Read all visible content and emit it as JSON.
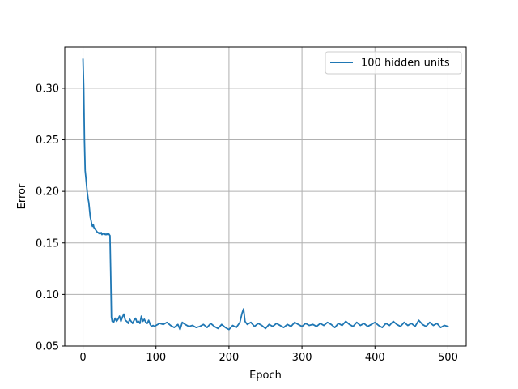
{
  "chart_data": {
    "type": "line",
    "xlabel": "Epoch",
    "ylabel": "Error",
    "xlim": [
      -25,
      525
    ],
    "ylim": [
      0.05,
      0.34
    ],
    "x_ticks": [
      0,
      100,
      200,
      300,
      400,
      500
    ],
    "y_ticks": [
      0.05,
      0.1,
      0.15,
      0.2,
      0.25,
      0.3
    ],
    "grid": true,
    "legend": "top-right",
    "colors": {
      "series": "#1f77b4",
      "grid": "#b0b0b0",
      "axis": "#000000"
    },
    "series": [
      {
        "name": "100 hidden units",
        "x": [
          0,
          1,
          2,
          3,
          4,
          5,
          6,
          7,
          8,
          9,
          10,
          11,
          12,
          13,
          14,
          15,
          16,
          17,
          18,
          19,
          20,
          21,
          22,
          23,
          24,
          25,
          26,
          27,
          28,
          29,
          30,
          31,
          32,
          33,
          34,
          35,
          36,
          37,
          38,
          39,
          40,
          42,
          44,
          46,
          48,
          50,
          52,
          54,
          56,
          58,
          60,
          62,
          64,
          66,
          68,
          70,
          72,
          74,
          76,
          78,
          80,
          82,
          84,
          86,
          88,
          90,
          92,
          94,
          96,
          98,
          100,
          105,
          110,
          115,
          120,
          125,
          130,
          133,
          136,
          140,
          145,
          150,
          155,
          160,
          165,
          170,
          175,
          180,
          185,
          190,
          195,
          200,
          205,
          210,
          215,
          218,
          220,
          222,
          225,
          230,
          235,
          240,
          245,
          250,
          255,
          260,
          265,
          270,
          275,
          280,
          285,
          290,
          295,
          300,
          305,
          310,
          315,
          320,
          325,
          330,
          335,
          340,
          345,
          350,
          355,
          360,
          365,
          370,
          375,
          380,
          385,
          390,
          395,
          400,
          405,
          410,
          415,
          420,
          425,
          430,
          435,
          440,
          445,
          450,
          455,
          460,
          465,
          470,
          475,
          480,
          485,
          490,
          495,
          500
        ],
        "y": [
          0.328,
          0.3,
          0.25,
          0.22,
          0.213,
          0.205,
          0.198,
          0.193,
          0.189,
          0.182,
          0.175,
          0.172,
          0.168,
          0.166,
          0.168,
          0.165,
          0.164,
          0.163,
          0.162,
          0.161,
          0.16,
          0.16,
          0.159,
          0.16,
          0.159,
          0.16,
          0.158,
          0.159,
          0.159,
          0.158,
          0.159,
          0.158,
          0.158,
          0.159,
          0.158,
          0.159,
          0.158,
          0.157,
          0.12,
          0.078,
          0.074,
          0.073,
          0.077,
          0.074,
          0.076,
          0.079,
          0.074,
          0.078,
          0.081,
          0.075,
          0.074,
          0.072,
          0.076,
          0.074,
          0.072,
          0.075,
          0.077,
          0.073,
          0.074,
          0.072,
          0.079,
          0.074,
          0.076,
          0.073,
          0.072,
          0.075,
          0.071,
          0.069,
          0.07,
          0.069,
          0.07,
          0.072,
          0.071,
          0.073,
          0.07,
          0.068,
          0.071,
          0.066,
          0.073,
          0.071,
          0.069,
          0.07,
          0.068,
          0.069,
          0.071,
          0.068,
          0.072,
          0.069,
          0.067,
          0.071,
          0.068,
          0.066,
          0.07,
          0.068,
          0.073,
          0.082,
          0.086,
          0.074,
          0.071,
          0.073,
          0.069,
          0.072,
          0.07,
          0.067,
          0.071,
          0.069,
          0.072,
          0.07,
          0.068,
          0.071,
          0.069,
          0.073,
          0.071,
          0.069,
          0.072,
          0.07,
          0.071,
          0.069,
          0.072,
          0.07,
          0.073,
          0.071,
          0.068,
          0.072,
          0.07,
          0.074,
          0.071,
          0.069,
          0.073,
          0.07,
          0.072,
          0.069,
          0.071,
          0.073,
          0.07,
          0.068,
          0.072,
          0.07,
          0.074,
          0.071,
          0.069,
          0.073,
          0.07,
          0.072,
          0.069,
          0.075,
          0.071,
          0.069,
          0.073,
          0.07,
          0.072,
          0.068,
          0.07,
          0.069
        ]
      }
    ]
  }
}
